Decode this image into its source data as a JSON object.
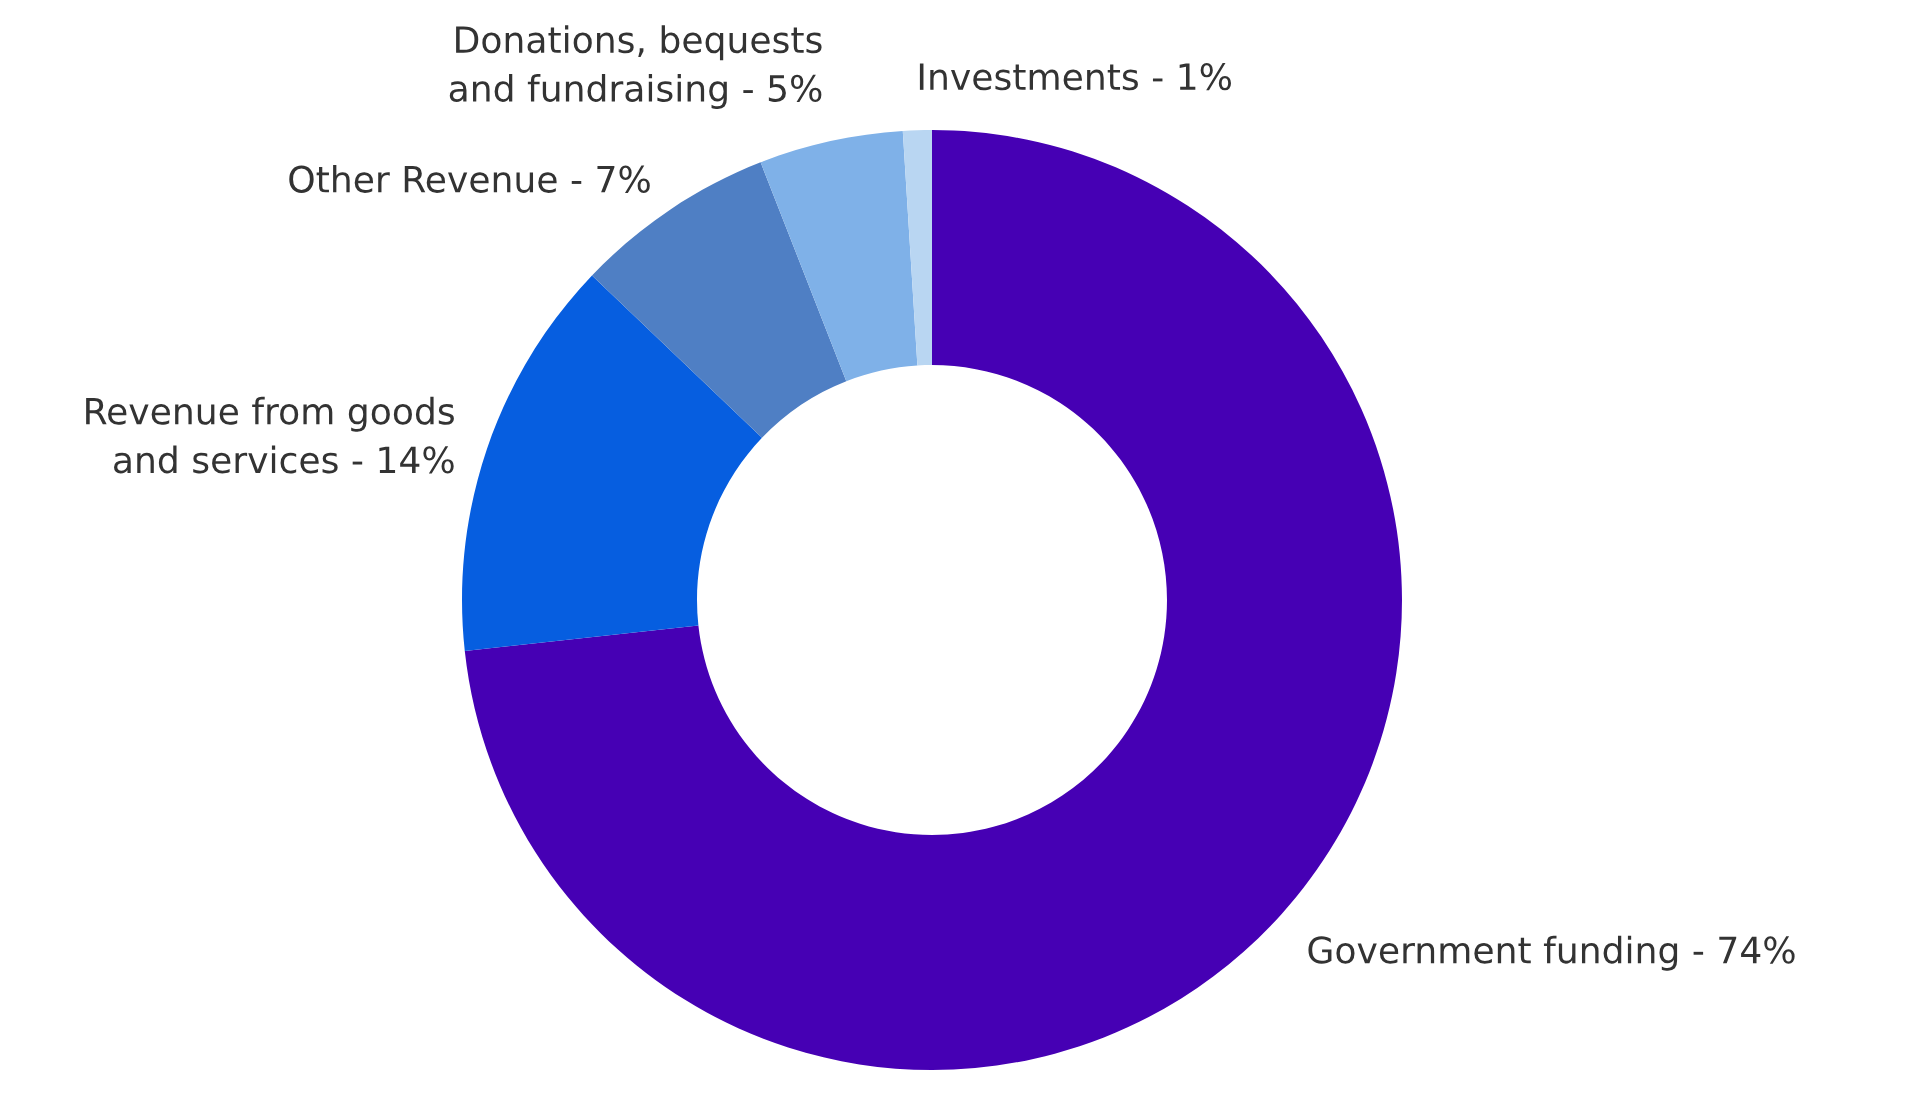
{
  "chart_data": {
    "type": "donut",
    "categories": [
      "Government funding - 74%",
      "Revenue from goods\nand services - 14%",
      "Other Revenue - 7%",
      "Donations, bequests\nand fundraising - 5%",
      "Investments - 1%"
    ],
    "values": [
      74,
      14,
      7,
      5,
      1
    ],
    "colors": [
      "#4600b4",
      "#065ee0",
      "#4f7fc4",
      "#7fb1e8",
      "#b9d6f2"
    ],
    "legend": false
  }
}
